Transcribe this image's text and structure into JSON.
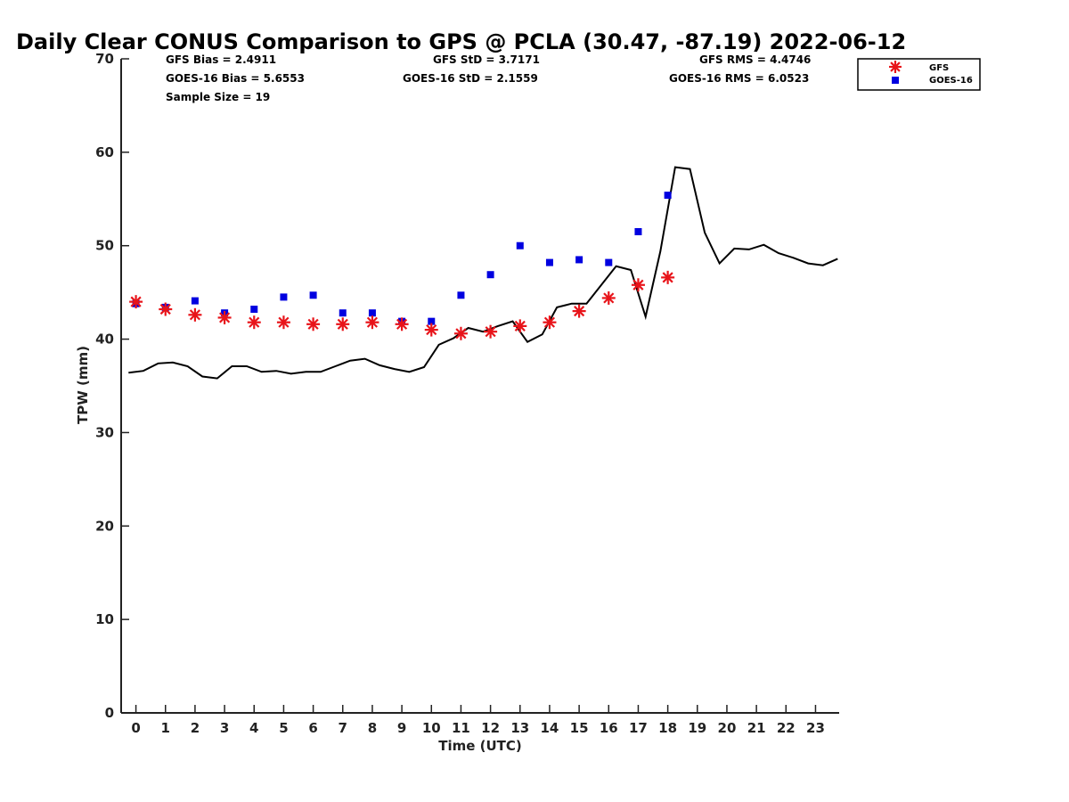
{
  "chart_data": {
    "type": "line",
    "title": "Daily Clear CONUS Comparison to GPS @ PCLA (30.47, -87.19) 2022-06-12",
    "xlabel": "Time (UTC)",
    "ylabel": "TPW (mm)",
    "xlim": [
      -0.5,
      23.8
    ],
    "ylim": [
      0,
      70
    ],
    "xticks": [
      0,
      1,
      2,
      3,
      4,
      5,
      6,
      7,
      8,
      9,
      10,
      11,
      12,
      13,
      14,
      15,
      16,
      17,
      18,
      19,
      20,
      21,
      22,
      23
    ],
    "yticks": [
      0,
      10,
      20,
      30,
      40,
      50,
      60,
      70
    ],
    "grid": false,
    "legend_position": "top-right (outside plot)",
    "stats": {
      "gfs_bias": "GFS Bias = 2.4911",
      "goes_bias": "GOES-16 Bias = 5.6553",
      "sample_size": "Sample Size = 19",
      "gfs_std": "GFS StD = 3.7171",
      "goes_std": "GOES-16 StD = 2.1559",
      "gfs_rms": "GFS RMS = 4.4746",
      "goes_rms": "GOES-16 RMS = 6.0523"
    },
    "series": [
      {
        "name": "GPS",
        "style": "line",
        "color": "#000000",
        "x": [
          -0.25,
          0.25,
          0.75,
          1.25,
          1.75,
          2.25,
          2.75,
          3.25,
          3.75,
          4.25,
          4.75,
          5.25,
          5.75,
          6.25,
          6.75,
          7.25,
          7.75,
          8.25,
          8.75,
          9.25,
          9.75,
          10.25,
          10.75,
          11.25,
          11.75,
          12.25,
          12.75,
          13.25,
          13.75,
          14.25,
          14.75,
          15.25,
          15.75,
          16.25,
          16.75,
          17.25,
          17.75,
          18.25,
          18.75,
          19.25,
          19.75,
          20.25,
          20.75,
          21.25,
          21.75,
          22.25,
          22.75,
          23.25,
          23.75
        ],
        "values": [
          36.4,
          36.6,
          37.4,
          37.5,
          37.1,
          36.0,
          35.8,
          37.1,
          37.1,
          36.5,
          36.6,
          36.3,
          36.5,
          36.5,
          37.1,
          37.7,
          37.9,
          37.2,
          36.8,
          36.5,
          37.0,
          39.4,
          40.1,
          41.2,
          40.8,
          41.4,
          41.9,
          39.7,
          40.5,
          43.4,
          43.8,
          43.8,
          45.8,
          47.8,
          47.4,
          42.4,
          49.4,
          58.4,
          58.2,
          51.4,
          48.1,
          49.7,
          49.6,
          50.1,
          49.2,
          48.7,
          48.1,
          47.9,
          48.6
        ]
      },
      {
        "name": "GFS",
        "style": "asterisk",
        "color": "#e8141a",
        "x": [
          0,
          1,
          2,
          3,
          4,
          5,
          6,
          7,
          8,
          9,
          10,
          11,
          12,
          13,
          14,
          15,
          16,
          17,
          18
        ],
        "values": [
          44.0,
          43.2,
          42.6,
          42.3,
          41.8,
          41.8,
          41.6,
          41.6,
          41.8,
          41.6,
          41.0,
          40.6,
          40.8,
          41.4,
          41.8,
          43.0,
          44.4,
          45.8,
          46.6
        ]
      },
      {
        "name": "GOES-16",
        "style": "square",
        "color": "#0000e0",
        "x": [
          0,
          1,
          2,
          3,
          4,
          5,
          6,
          7,
          8,
          9,
          10,
          11,
          12,
          13,
          14,
          15,
          16,
          17,
          18
        ],
        "values": [
          43.8,
          43.4,
          44.1,
          42.8,
          43.2,
          44.5,
          44.7,
          42.8,
          42.8,
          41.9,
          41.9,
          44.7,
          46.9,
          50.0,
          48.2,
          48.5,
          48.2,
          51.5,
          55.4
        ]
      }
    ]
  },
  "legend": {
    "items": [
      {
        "label": "GFS",
        "color": "#e8141a",
        "marker": "asterisk"
      },
      {
        "label": "GOES-16",
        "color": "#0000e0",
        "marker": "square"
      }
    ]
  }
}
